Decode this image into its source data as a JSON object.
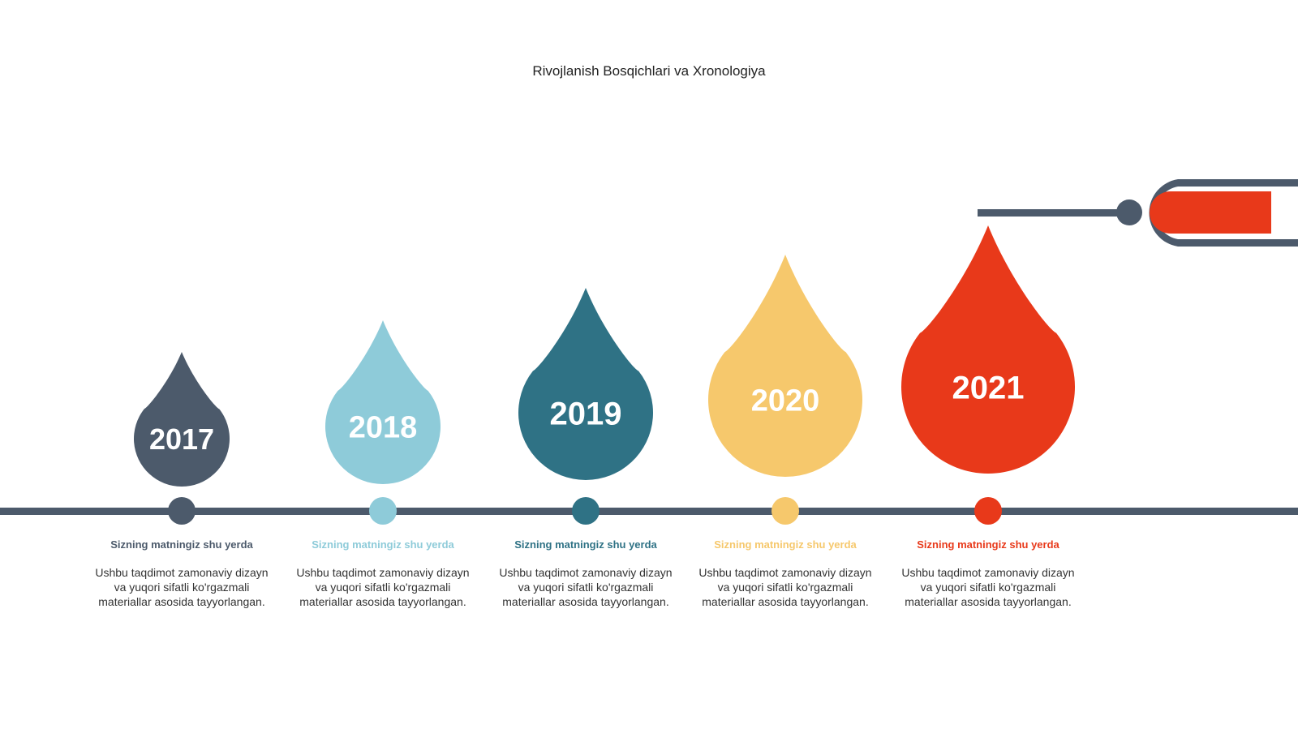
{
  "title": "Rivojlanish Bosqichlari va Xronologiya",
  "milestones": [
    {
      "year": "2017",
      "heading": "Sizning matningiz shu yerda",
      "body": "Ushbu taqdimot zamonaviy dizayn va yuqori sifatli ko'rgazmali materiallar asosida tayyorlangan.",
      "color": "#4c5a6b"
    },
    {
      "year": "2018",
      "heading": "Sizning matningiz shu yerda",
      "body": "Ushbu taqdimot zamonaviy dizayn va yuqori sifatli ko'rgazmali materiallar asosida tayyorlangan.",
      "color": "#8ecbd9"
    },
    {
      "year": "2019",
      "heading": "Sizning matningiz shu yerda",
      "body": "Ushbu taqdimot zamonaviy dizayn va yuqori sifatli ko'rgazmali materiallar asosida tayyorlangan.",
      "color": "#2f7285"
    },
    {
      "year": "2020",
      "heading": "Sizning matningiz shu yerda",
      "body": "Ushbu taqdimot zamonaviy dizayn va yuqori sifatli ko'rgazmali materiallar asosida tayyorlangan.",
      "color": "#f6c86c"
    },
    {
      "year": "2021",
      "heading": "Sizning matningiz shu yerda",
      "body": "Ushbu taqdimot zamonaviy dizayn va yuqori sifatli ko'rgazmali materiallar asosida tayyorlangan.",
      "color": "#e8391a"
    }
  ],
  "line_color": "#4c5a6b"
}
